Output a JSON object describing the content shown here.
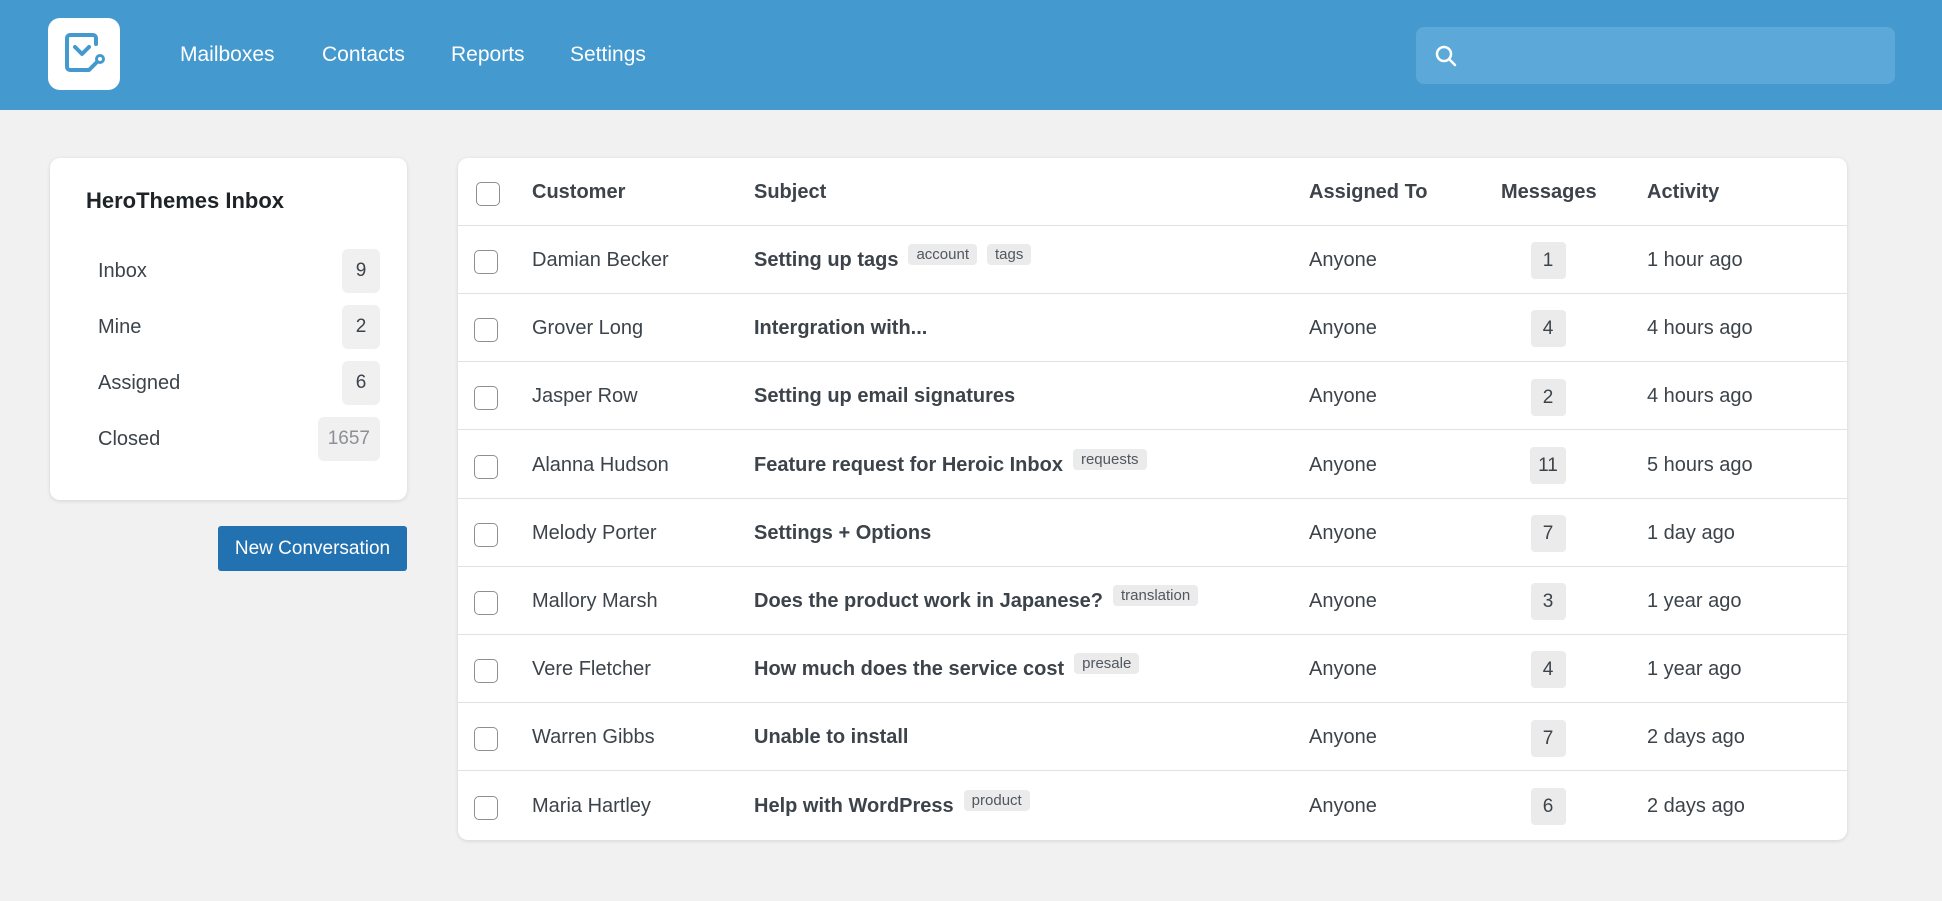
{
  "header": {
    "logo": "Heroic Inbox logo",
    "nav": [
      "Mailboxes",
      "Contacts",
      "Reports",
      "Settings"
    ],
    "search_placeholder": "",
    "search_value": "",
    "brand_color": "#4499cf"
  },
  "sidebar": {
    "title": "HeroThemes Inbox",
    "items": [
      {
        "label": "Inbox",
        "count": "9"
      },
      {
        "label": "Mine",
        "count": "2"
      },
      {
        "label": "Assigned",
        "count": "6"
      },
      {
        "label": "Closed",
        "count": "1657"
      }
    ],
    "new_button": "New Conversation",
    "button_color": "#2271b1"
  },
  "table": {
    "columns": [
      "Customer",
      "Subject",
      "Assigned To",
      "Messages",
      "Activity"
    ],
    "rows": [
      {
        "customer": "Damian Becker",
        "subject": "Setting up tags",
        "tags": [
          "account",
          "tags"
        ],
        "assigned": "Anyone",
        "messages": "1",
        "activity": "1 hour ago"
      },
      {
        "customer": "Grover Long",
        "subject": "Intergration with...",
        "tags": [],
        "assigned": "Anyone",
        "messages": "4",
        "activity": "4 hours ago"
      },
      {
        "customer": "Jasper Row",
        "subject": "Setting up email signatures",
        "tags": [],
        "assigned": "Anyone",
        "messages": "2",
        "activity": "4 hours ago"
      },
      {
        "customer": "Alanna Hudson",
        "subject": "Feature request for Heroic Inbox",
        "tags": [
          "requests"
        ],
        "assigned": "Anyone",
        "messages": "11",
        "activity": "5 hours ago"
      },
      {
        "customer": "Melody Porter",
        "subject": "Settings + Options",
        "tags": [],
        "assigned": "Anyone",
        "messages": "7",
        "activity": "1 day ago"
      },
      {
        "customer": "Mallory Marsh",
        "subject": "Does the product work in Japanese?",
        "tags": [
          "translation"
        ],
        "assigned": "Anyone",
        "messages": "3",
        "activity": "1 year ago"
      },
      {
        "customer": "Vere Fletcher",
        "subject": "How much does the service cost",
        "tags": [
          "presale"
        ],
        "assigned": "Anyone",
        "messages": "4",
        "activity": "1 year ago"
      },
      {
        "customer": "Warren Gibbs",
        "subject": "Unable to install",
        "tags": [],
        "assigned": "Anyone",
        "messages": "7",
        "activity": "2 days ago"
      },
      {
        "customer": "Maria Hartley",
        "subject": "Help with WordPress",
        "tags": [
          "product"
        ],
        "assigned": "Anyone",
        "messages": "6",
        "activity": "2 days ago"
      }
    ]
  }
}
